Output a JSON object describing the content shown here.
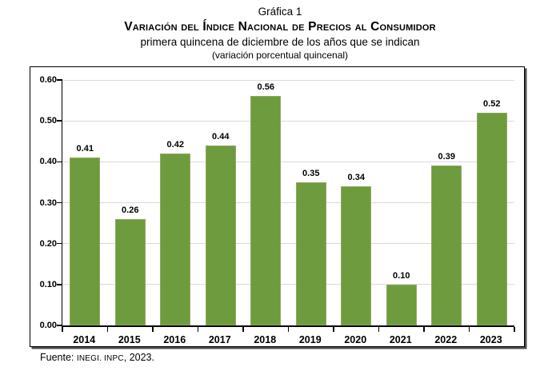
{
  "header": {
    "figure_label": "Gráfica 1",
    "title": "Variación del Índice Nacional de Precios al Consumidor",
    "subtitle": "primera quincena de diciembre de los años que se indican",
    "units_note": "(variación porcentual quincenal)"
  },
  "chart_data": {
    "type": "bar",
    "title": "Gráfica 1 — Variación del Índice Nacional de Precios al Consumidor",
    "subtitle": "primera quincena de diciembre de los años que se indican (variación porcentual quincenal)",
    "categories": [
      "2014",
      "2015",
      "2016",
      "2017",
      "2018",
      "2019",
      "2020",
      "2021",
      "2022",
      "2023"
    ],
    "values": [
      0.41,
      0.26,
      0.42,
      0.44,
      0.56,
      0.35,
      0.34,
      0.1,
      0.39,
      0.52
    ],
    "value_labels": [
      "0.41",
      "0.26",
      "0.42",
      "0.44",
      "0.56",
      "0.35",
      "0.34",
      "0.10",
      "0.39",
      "0.52"
    ],
    "xlabel": "",
    "ylabel": "",
    "ylim": [
      0.0,
      0.6
    ],
    "yticks": [
      "0.00",
      "0.10",
      "0.20",
      "0.30",
      "0.40",
      "0.50",
      "0.60"
    ],
    "grid": true,
    "legend": false,
    "bar_color": "#6e9b3e",
    "gridline_color": "#d9d9d9",
    "axis_color": "#000000",
    "label_color": "#000000"
  },
  "footer": {
    "prefix": "Fuente: ",
    "acronyms": "INEGI. INPC",
    "suffix": ", 2023."
  }
}
